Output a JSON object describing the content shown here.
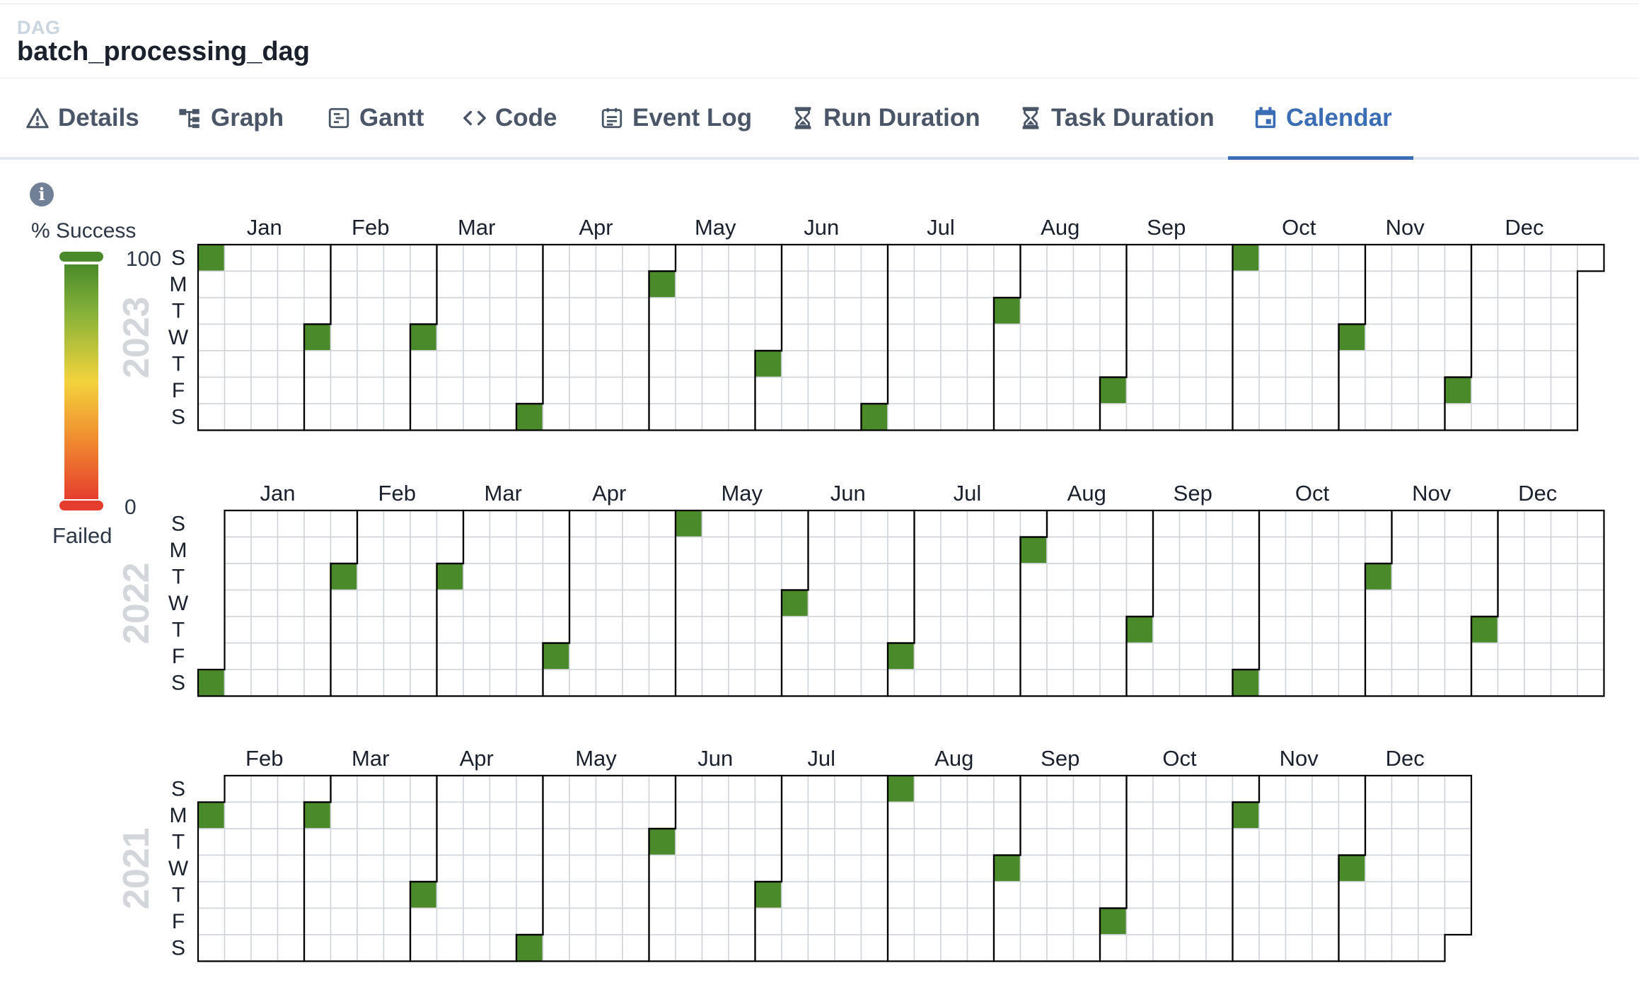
{
  "header": {
    "kicker": "DAG",
    "title": "batch_processing_dag"
  },
  "tabs": [
    {
      "label": "Details",
      "icon": "alert-triangle-icon"
    },
    {
      "label": "Graph",
      "icon": "graph-icon"
    },
    {
      "label": "Gantt",
      "icon": "gantt-icon"
    },
    {
      "label": "Code",
      "icon": "code-icon"
    },
    {
      "label": "Event Log",
      "icon": "event-log-icon"
    },
    {
      "label": "Run Duration",
      "icon": "hourglass-icon"
    },
    {
      "label": "Task Duration",
      "icon": "hourglass-icon"
    },
    {
      "label": "Calendar",
      "icon": "calendar-icon"
    }
  ],
  "active_tab": "Calendar",
  "colors": {
    "accent": "#3b6db4",
    "success": "#4a8a2a",
    "failed": "#e53e2e",
    "grid": "#cfd3d8"
  },
  "legend": {
    "title": "% Success",
    "max_label": "100",
    "min_label": "0",
    "failed_label": "Failed"
  },
  "chart_data": {
    "type": "heatmap",
    "day_labels": [
      "S",
      "M",
      "T",
      "W",
      "T",
      "F",
      "S"
    ],
    "years": [
      {
        "year": "2023",
        "month_labels": [
          "Jan",
          "Feb",
          "Mar",
          "Apr",
          "May",
          "Jun",
          "Jul",
          "Aug",
          "Sep",
          "Oct",
          "Nov",
          "Dec"
        ],
        "runs": [
          {
            "date": "2023-01-01",
            "success_pct": 100
          },
          {
            "date": "2023-02-01",
            "success_pct": 100
          },
          {
            "date": "2023-03-01",
            "success_pct": 100
          },
          {
            "date": "2023-04-01",
            "success_pct": 100
          },
          {
            "date": "2023-05-01",
            "success_pct": 100
          },
          {
            "date": "2023-06-01",
            "success_pct": 100
          },
          {
            "date": "2023-07-01",
            "success_pct": 100
          },
          {
            "date": "2023-08-01",
            "success_pct": 100
          },
          {
            "date": "2023-09-01",
            "success_pct": 100
          },
          {
            "date": "2023-10-01",
            "success_pct": 100
          },
          {
            "date": "2023-11-01",
            "success_pct": 100
          },
          {
            "date": "2023-12-01",
            "success_pct": 100
          }
        ]
      },
      {
        "year": "2022",
        "month_labels": [
          "Jan",
          "Feb",
          "Mar",
          "Apr",
          "May",
          "Jun",
          "Jul",
          "Aug",
          "Sep",
          "Oct",
          "Nov",
          "Dec"
        ],
        "runs": [
          {
            "date": "2022-01-01",
            "success_pct": 100
          },
          {
            "date": "2022-02-01",
            "success_pct": 100
          },
          {
            "date": "2022-03-01",
            "success_pct": 100
          },
          {
            "date": "2022-04-01",
            "success_pct": 100
          },
          {
            "date": "2022-05-01",
            "success_pct": 100
          },
          {
            "date": "2022-06-01",
            "success_pct": 100
          },
          {
            "date": "2022-07-01",
            "success_pct": 100
          },
          {
            "date": "2022-08-01",
            "success_pct": 100
          },
          {
            "date": "2022-09-01",
            "success_pct": 100
          },
          {
            "date": "2022-10-01",
            "success_pct": 100
          },
          {
            "date": "2022-11-01",
            "success_pct": 100
          },
          {
            "date": "2022-12-01",
            "success_pct": 100
          }
        ]
      },
      {
        "year": "2021",
        "month_labels": [
          "Feb",
          "Mar",
          "Apr",
          "May",
          "Jun",
          "Jul",
          "Aug",
          "Sep",
          "Oct",
          "Nov",
          "Dec"
        ],
        "start_date": "2021-02-01",
        "runs": [
          {
            "date": "2021-02-01",
            "success_pct": 100
          },
          {
            "date": "2021-03-01",
            "success_pct": 100
          },
          {
            "date": "2021-04-01",
            "success_pct": 100
          },
          {
            "date": "2021-05-01",
            "success_pct": 100
          },
          {
            "date": "2021-06-01",
            "success_pct": 100
          },
          {
            "date": "2021-07-01",
            "success_pct": 100
          },
          {
            "date": "2021-08-01",
            "success_pct": 100
          },
          {
            "date": "2021-09-01",
            "success_pct": 100
          },
          {
            "date": "2021-10-01",
            "success_pct": 100
          },
          {
            "date": "2021-11-01",
            "success_pct": 100
          },
          {
            "date": "2021-12-01",
            "success_pct": 100
          }
        ]
      }
    ]
  }
}
